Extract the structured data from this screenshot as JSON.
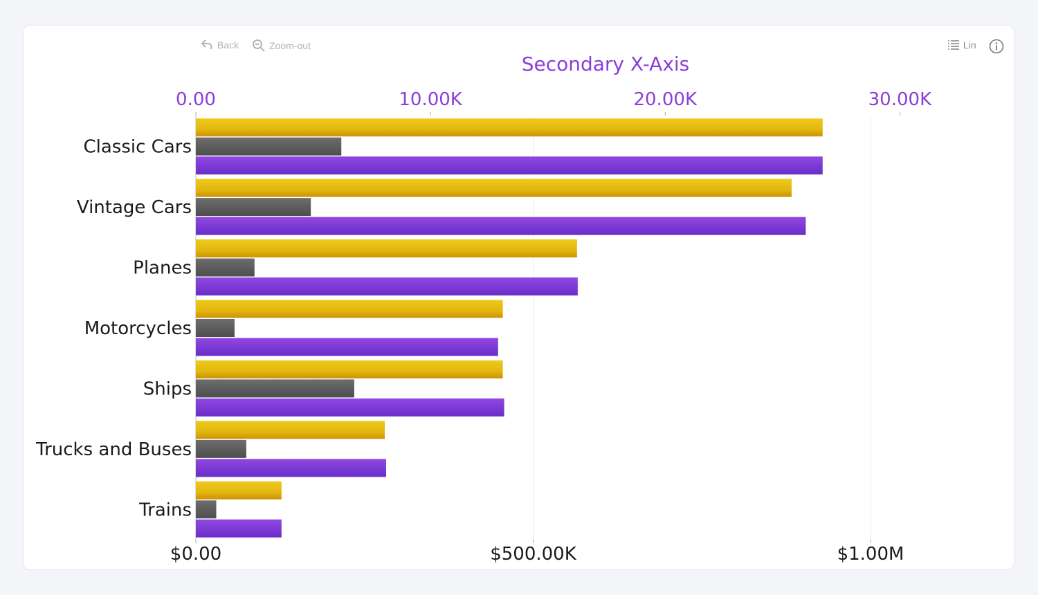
{
  "toolbar": {
    "back_label": "Back",
    "zoom_out_label": "Zoom-out",
    "scale_label": "Lin"
  },
  "colors": {
    "gold": "#e2b70f",
    "gold_dark": "#d19505",
    "gray": "#5f5f5f",
    "purple": "#8a3fd9",
    "purple_dark": "#6c2fcb",
    "axis_secondary": "#8a3fd9"
  },
  "icons": {
    "back": "back-arrow-icon",
    "zoom_out": "zoom-out-icon",
    "scale": "list-icon",
    "info": "info-icon"
  },
  "chart_data": {
    "type": "bar",
    "orientation": "horizontal",
    "categories": [
      "Classic Cars",
      "Vintage Cars",
      "Planes",
      "Motorcycles",
      "Ships",
      "Trucks and Buses",
      "Trains"
    ],
    "series": [
      {
        "color": "#e2b70f",
        "axis": "primary",
        "values": [
          929000,
          883000,
          565000,
          455000,
          455000,
          280000,
          127000
        ]
      },
      {
        "color": "#5f5f5f",
        "axis": "secondary",
        "values": [
          6200,
          4900,
          2500,
          1650,
          6750,
          2150,
          870
        ]
      },
      {
        "color": "#8a3fd9",
        "axis": "primary",
        "values": [
          929000,
          904000,
          566000,
          448000,
          457000,
          282000,
          127000
        ]
      }
    ],
    "primary_axis": {
      "range": [
        0,
        1200000
      ],
      "ticks": [
        0,
        500000,
        1000000
      ],
      "tick_labels": [
        "$0.00",
        "$500.00K",
        "$1.00M"
      ]
    },
    "secondary_axis": {
      "title": "Secondary X-Axis",
      "range": [
        0,
        34500
      ],
      "ticks": [
        0,
        10000,
        20000,
        30000
      ],
      "tick_labels": [
        "0.00",
        "10.00K",
        "20.00K",
        "30.00K"
      ]
    },
    "grid": true,
    "legend": "none"
  }
}
